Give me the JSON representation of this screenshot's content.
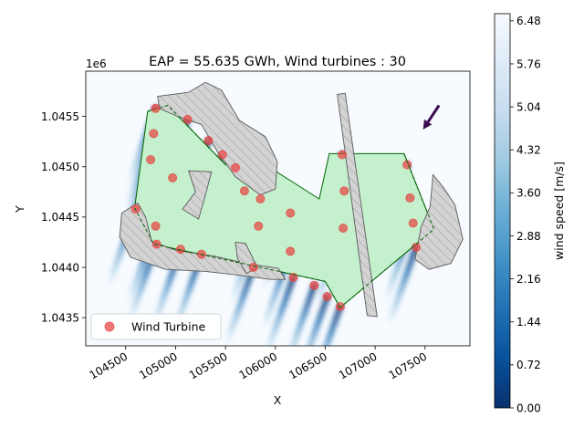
{
  "chart_data": {
    "type": "scatter",
    "title": "EAP = 55.635 GWh, Wind turbines : 30",
    "xlabel": "X",
    "ylabel": "Y",
    "y_offset_label": "1e6",
    "xlim": [
      104100,
      107950
    ],
    "ylim": [
      1043220,
      1045950
    ],
    "x_ticks": [
      104500,
      105000,
      105500,
      106000,
      106500,
      107000,
      107500
    ],
    "x_tick_labels": [
      "104500",
      "105000",
      "105500",
      "106000",
      "106500",
      "107000",
      "107500"
    ],
    "y_ticks": [
      1043500,
      1044000,
      1044500,
      1045000,
      1045500
    ],
    "y_tick_labels": [
      "1.0435",
      "1.0440",
      "1.0445",
      "1.0450",
      "1.0455"
    ],
    "legend": {
      "position": "lower-left",
      "label": "Wind Turbine"
    },
    "colorbar": {
      "label": "wind speed [m/s]",
      "range": [
        0,
        6.6
      ],
      "ticks": [
        0,
        0.72,
        1.44,
        2.16,
        2.88,
        3.6,
        4.32,
        5.04,
        5.76,
        6.48
      ],
      "tick_labels": [
        "0.00",
        "0.72",
        "1.44",
        "2.16",
        "2.88",
        "3.60",
        "4.32",
        "5.04",
        "5.76",
        "6.48"
      ]
    },
    "wind_direction_arrow": {
      "from": [
        107640,
        1045610
      ],
      "to": [
        107480,
        1045370
      ]
    },
    "boundary_polygon": [
      [
        104720,
        1045550
      ],
      [
        104920,
        1045610
      ],
      [
        105500,
        1045020
      ],
      [
        105980,
        1044970
      ],
      [
        106440,
        1044680
      ],
      [
        106540,
        1045130
      ],
      [
        107290,
        1045130
      ],
      [
        107590,
        1044380
      ],
      [
        106650,
        1043600
      ],
      [
        106500,
        1043860
      ],
      [
        104780,
        1044230
      ],
      [
        104590,
        1044590
      ]
    ],
    "exclusion_zones": [
      [
        [
          104820,
          1045700
        ],
        [
          105130,
          1045740
        ],
        [
          105300,
          1045840
        ],
        [
          105460,
          1045760
        ],
        [
          105640,
          1045460
        ],
        [
          105900,
          1045300
        ],
        [
          106020,
          1045050
        ],
        [
          106000,
          1044780
        ],
        [
          105850,
          1044720
        ],
        [
          105600,
          1044900
        ],
        [
          105420,
          1045150
        ],
        [
          105260,
          1045420
        ],
        [
          105020,
          1045500
        ],
        [
          104840,
          1045580
        ]
      ],
      [
        [
          105130,
          1044960
        ],
        [
          105360,
          1044950
        ],
        [
          105300,
          1044720
        ],
        [
          105230,
          1044480
        ],
        [
          105070,
          1044580
        ],
        [
          105200,
          1044750
        ]
      ],
      [
        [
          104620,
          1044640
        ],
        [
          104460,
          1044540
        ],
        [
          104440,
          1044300
        ],
        [
          104550,
          1044100
        ],
        [
          104900,
          1043980
        ],
        [
          105300,
          1043960
        ],
        [
          105650,
          1043920
        ],
        [
          105950,
          1043880
        ],
        [
          106100,
          1043880
        ],
        [
          106030,
          1043990
        ],
        [
          105700,
          1044040
        ],
        [
          105400,
          1044110
        ],
        [
          105000,
          1044170
        ],
        [
          104760,
          1044260
        ],
        [
          104700,
          1044500
        ]
      ],
      [
        [
          105600,
          1044250
        ],
        [
          105700,
          1044240
        ],
        [
          105820,
          1044000
        ],
        [
          105710,
          1043940
        ],
        [
          105620,
          1044090
        ]
      ],
      [
        [
          106620,
          1045720
        ],
        [
          106700,
          1045730
        ],
        [
          107020,
          1043510
        ],
        [
          106920,
          1043520
        ]
      ],
      [
        [
          107580,
          1044920
        ],
        [
          107680,
          1044800
        ],
        [
          107800,
          1044620
        ],
        [
          107880,
          1044280
        ],
        [
          107760,
          1044040
        ],
        [
          107540,
          1043980
        ],
        [
          107400,
          1044080
        ],
        [
          107460,
          1044400
        ],
        [
          107550,
          1044600
        ]
      ]
    ],
    "series": [
      {
        "name": "Wind Turbine",
        "color": "#e8403f",
        "points": [
          [
            104800,
            1045580
          ],
          [
            104780,
            1045330
          ],
          [
            104750,
            1045070
          ],
          [
            104600,
            1044580
          ],
          [
            104800,
            1044410
          ],
          [
            104810,
            1044230
          ],
          [
            104970,
            1044890
          ],
          [
            105050,
            1044180
          ],
          [
            105120,
            1045470
          ],
          [
            105260,
            1044130
          ],
          [
            105330,
            1045260
          ],
          [
            105470,
            1045120
          ],
          [
            105600,
            1044990
          ],
          [
            105690,
            1044760
          ],
          [
            105830,
            1044410
          ],
          [
            105780,
            1044000
          ],
          [
            105850,
            1044680
          ],
          [
            106150,
            1044540
          ],
          [
            106150,
            1044160
          ],
          [
            106180,
            1043900
          ],
          [
            106390,
            1043820
          ],
          [
            106520,
            1043710
          ],
          [
            106650,
            1043610
          ],
          [
            106670,
            1045120
          ],
          [
            106690,
            1044760
          ],
          [
            106680,
            1044390
          ],
          [
            107320,
            1045020
          ],
          [
            107350,
            1044690
          ],
          [
            107380,
            1044440
          ],
          [
            107410,
            1044200
          ]
        ]
      }
    ],
    "wake_field": {
      "direction": [
        0.35,
        1
      ],
      "min_speed": 0.15,
      "max_speed": 6.6
    }
  }
}
